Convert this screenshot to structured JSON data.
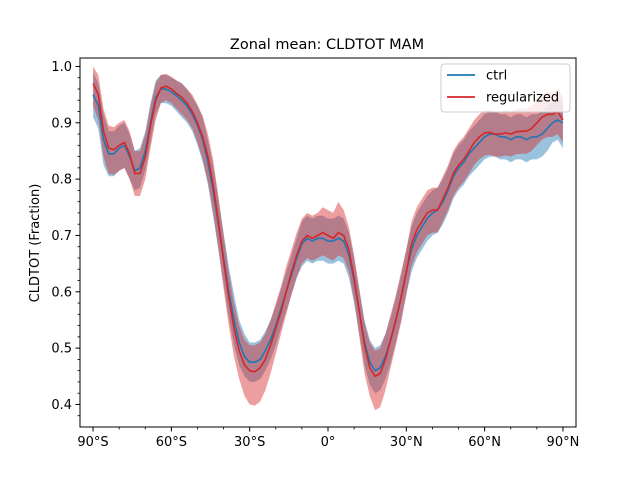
{
  "chart_data": {
    "type": "line",
    "title": "Zonal mean: CLDTOT MAM",
    "xlabel": "",
    "ylabel": "CLDTOT (Fraction)",
    "xlim": [
      -95,
      95
    ],
    "ylim": [
      0.36,
      1.015
    ],
    "x_ticks": [
      -90,
      -60,
      -30,
      0,
      30,
      60,
      90
    ],
    "x_tick_labels": [
      "90°S",
      "60°S",
      "30°S",
      "0°",
      "30°N",
      "60°N",
      "90°N"
    ],
    "y_ticks": [
      0.4,
      0.5,
      0.6,
      0.7,
      0.8,
      0.9,
      1.0
    ],
    "y_tick_labels": [
      "0.4",
      "0.5",
      "0.6",
      "0.7",
      "0.8",
      "0.9",
      "1.0"
    ],
    "legend_position": "top-right",
    "x": [
      -90,
      -88,
      -86,
      -84,
      -82,
      -80,
      -78,
      -76,
      -74,
      -72,
      -70,
      -68,
      -66,
      -64,
      -62,
      -60,
      -58,
      -56,
      -54,
      -52,
      -50,
      -48,
      -46,
      -44,
      -42,
      -40,
      -38,
      -36,
      -34,
      -32,
      -30,
      -28,
      -26,
      -24,
      -22,
      -20,
      -18,
      -16,
      -14,
      -12,
      -10,
      -8,
      -6,
      -4,
      -2,
      0,
      2,
      4,
      6,
      8,
      10,
      12,
      14,
      16,
      18,
      20,
      22,
      24,
      26,
      28,
      30,
      32,
      34,
      36,
      38,
      40,
      42,
      44,
      46,
      48,
      50,
      52,
      54,
      56,
      58,
      60,
      62,
      64,
      66,
      68,
      70,
      72,
      74,
      76,
      78,
      80,
      82,
      84,
      86,
      88,
      90
    ],
    "series": [
      {
        "name": "ctrl",
        "color": "#1f77b4",
        "band_color": "#1f77b4",
        "values": [
          0.95,
          0.93,
          0.87,
          0.845,
          0.845,
          0.855,
          0.86,
          0.84,
          0.815,
          0.82,
          0.85,
          0.9,
          0.945,
          0.96,
          0.96,
          0.955,
          0.948,
          0.94,
          0.93,
          0.915,
          0.895,
          0.87,
          0.83,
          0.78,
          0.72,
          0.66,
          0.6,
          0.55,
          0.51,
          0.485,
          0.475,
          0.475,
          0.48,
          0.495,
          0.515,
          0.54,
          0.57,
          0.6,
          0.63,
          0.66,
          0.685,
          0.695,
          0.69,
          0.695,
          0.695,
          0.69,
          0.69,
          0.695,
          0.69,
          0.665,
          0.62,
          0.565,
          0.51,
          0.475,
          0.46,
          0.465,
          0.485,
          0.515,
          0.55,
          0.59,
          0.635,
          0.675,
          0.7,
          0.715,
          0.73,
          0.74,
          0.745,
          0.76,
          0.78,
          0.805,
          0.82,
          0.83,
          0.845,
          0.855,
          0.865,
          0.875,
          0.88,
          0.88,
          0.875,
          0.875,
          0.87,
          0.875,
          0.875,
          0.87,
          0.875,
          0.875,
          0.88,
          0.89,
          0.9,
          0.905,
          0.9
        ],
        "lower": [
          0.91,
          0.89,
          0.825,
          0.805,
          0.805,
          0.815,
          0.82,
          0.8,
          0.78,
          0.785,
          0.815,
          0.865,
          0.915,
          0.935,
          0.935,
          0.93,
          0.92,
          0.91,
          0.9,
          0.885,
          0.86,
          0.83,
          0.79,
          0.735,
          0.675,
          0.615,
          0.555,
          0.505,
          0.47,
          0.45,
          0.44,
          0.44,
          0.445,
          0.46,
          0.48,
          0.505,
          0.535,
          0.565,
          0.595,
          0.625,
          0.645,
          0.655,
          0.65,
          0.655,
          0.655,
          0.65,
          0.65,
          0.655,
          0.65,
          0.625,
          0.58,
          0.525,
          0.47,
          0.435,
          0.42,
          0.425,
          0.445,
          0.475,
          0.51,
          0.55,
          0.595,
          0.635,
          0.66,
          0.675,
          0.69,
          0.7,
          0.705,
          0.72,
          0.74,
          0.765,
          0.78,
          0.79,
          0.805,
          0.815,
          0.825,
          0.835,
          0.84,
          0.84,
          0.835,
          0.835,
          0.83,
          0.835,
          0.835,
          0.83,
          0.835,
          0.835,
          0.84,
          0.85,
          0.865,
          0.87,
          0.855
        ],
        "upper": [
          0.99,
          0.97,
          0.915,
          0.885,
          0.885,
          0.895,
          0.9,
          0.88,
          0.85,
          0.855,
          0.885,
          0.935,
          0.975,
          0.985,
          0.985,
          0.98,
          0.975,
          0.97,
          0.96,
          0.945,
          0.93,
          0.91,
          0.87,
          0.825,
          0.765,
          0.705,
          0.645,
          0.595,
          0.55,
          0.525,
          0.51,
          0.51,
          0.515,
          0.53,
          0.55,
          0.575,
          0.605,
          0.635,
          0.665,
          0.695,
          0.725,
          0.735,
          0.73,
          0.735,
          0.735,
          0.73,
          0.73,
          0.735,
          0.73,
          0.705,
          0.66,
          0.605,
          0.55,
          0.515,
          0.5,
          0.505,
          0.525,
          0.555,
          0.59,
          0.63,
          0.675,
          0.715,
          0.74,
          0.755,
          0.77,
          0.78,
          0.785,
          0.8,
          0.82,
          0.845,
          0.86,
          0.87,
          0.885,
          0.895,
          0.905,
          0.915,
          0.92,
          0.92,
          0.915,
          0.915,
          0.91,
          0.915,
          0.915,
          0.91,
          0.915,
          0.915,
          0.92,
          0.93,
          0.94,
          0.945,
          0.94
        ]
      },
      {
        "name": "regularized",
        "color": "#d62728",
        "band_color": "#d62728",
        "values": [
          0.97,
          0.95,
          0.885,
          0.855,
          0.852,
          0.86,
          0.865,
          0.845,
          0.81,
          0.81,
          0.84,
          0.895,
          0.94,
          0.962,
          0.965,
          0.96,
          0.952,
          0.945,
          0.935,
          0.92,
          0.9,
          0.875,
          0.84,
          0.79,
          0.725,
          0.655,
          0.59,
          0.535,
          0.495,
          0.47,
          0.46,
          0.458,
          0.465,
          0.48,
          0.505,
          0.535,
          0.565,
          0.6,
          0.635,
          0.665,
          0.69,
          0.7,
          0.695,
          0.7,
          0.705,
          0.7,
          0.695,
          0.705,
          0.7,
          0.675,
          0.625,
          0.565,
          0.505,
          0.465,
          0.45,
          0.455,
          0.48,
          0.515,
          0.55,
          0.59,
          0.635,
          0.685,
          0.71,
          0.725,
          0.74,
          0.745,
          0.745,
          0.765,
          0.785,
          0.81,
          0.825,
          0.835,
          0.85,
          0.865,
          0.875,
          0.882,
          0.883,
          0.88,
          0.88,
          0.882,
          0.88,
          0.884,
          0.885,
          0.885,
          0.89,
          0.9,
          0.91,
          0.915,
          0.915,
          0.92,
          0.905
        ],
        "lower": [
          0.93,
          0.905,
          0.84,
          0.81,
          0.808,
          0.815,
          0.82,
          0.8,
          0.77,
          0.77,
          0.8,
          0.855,
          0.905,
          0.935,
          0.94,
          0.935,
          0.925,
          0.915,
          0.905,
          0.89,
          0.865,
          0.835,
          0.795,
          0.74,
          0.675,
          0.605,
          0.54,
          0.485,
          0.445,
          0.415,
          0.4,
          0.398,
          0.405,
          0.425,
          0.455,
          0.49,
          0.525,
          0.56,
          0.595,
          0.625,
          0.65,
          0.66,
          0.655,
          0.66,
          0.665,
          0.66,
          0.655,
          0.665,
          0.66,
          0.635,
          0.585,
          0.52,
          0.455,
          0.415,
          0.39,
          0.395,
          0.425,
          0.465,
          0.505,
          0.545,
          0.595,
          0.645,
          0.67,
          0.685,
          0.7,
          0.705,
          0.705,
          0.725,
          0.745,
          0.77,
          0.785,
          0.795,
          0.81,
          0.825,
          0.835,
          0.842,
          0.843,
          0.84,
          0.84,
          0.842,
          0.84,
          0.844,
          0.845,
          0.845,
          0.85,
          0.86,
          0.87,
          0.875,
          0.875,
          0.88,
          0.865
        ],
        "upper": [
          1.0,
          0.985,
          0.925,
          0.895,
          0.892,
          0.9,
          0.905,
          0.885,
          0.85,
          0.85,
          0.88,
          0.93,
          0.97,
          0.985,
          0.987,
          0.982,
          0.975,
          0.97,
          0.96,
          0.95,
          0.932,
          0.912,
          0.88,
          0.835,
          0.77,
          0.7,
          0.635,
          0.58,
          0.54,
          0.515,
          0.505,
          0.505,
          0.51,
          0.525,
          0.55,
          0.58,
          0.61,
          0.645,
          0.675,
          0.705,
          0.73,
          0.74,
          0.735,
          0.74,
          0.75,
          0.745,
          0.74,
          0.76,
          0.745,
          0.715,
          0.665,
          0.605,
          0.545,
          0.51,
          0.495,
          0.5,
          0.525,
          0.56,
          0.595,
          0.635,
          0.675,
          0.725,
          0.75,
          0.765,
          0.78,
          0.785,
          0.785,
          0.805,
          0.825,
          0.85,
          0.865,
          0.875,
          0.89,
          0.905,
          0.915,
          0.922,
          0.923,
          0.92,
          0.92,
          0.922,
          0.92,
          0.924,
          0.925,
          0.925,
          0.93,
          0.94,
          0.95,
          0.955,
          0.955,
          0.96,
          0.945
        ]
      }
    ]
  }
}
